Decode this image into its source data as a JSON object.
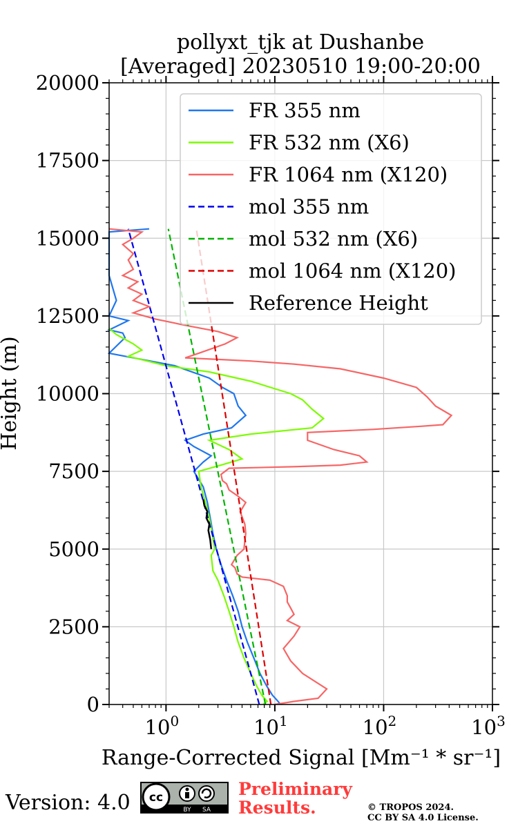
{
  "chart_data": {
    "type": "line",
    "title_line1": "pollyxt_tjk at Dushanbe",
    "title_line2": "[Averaged] 20230510 19:00-20:00",
    "xlabel": "Range-Corrected Signal",
    "xlabel_units": "[Mm⁻¹ * sr⁻¹]",
    "ylabel": "Height (m)",
    "xscale": "log",
    "xlim": [
      0.3,
      1000
    ],
    "ylim": [
      0,
      20000
    ],
    "grid": true,
    "legend_position": "top-right",
    "x_ticks": [
      {
        "value": 1,
        "base": "10",
        "exp": "0"
      },
      {
        "value": 10,
        "base": "10",
        "exp": "1"
      },
      {
        "value": 100,
        "base": "10",
        "exp": "2"
      },
      {
        "value": 1000,
        "base": "10",
        "exp": "3"
      }
    ],
    "y_ticks": [
      {
        "value": 0,
        "label": "0"
      },
      {
        "value": 2500,
        "label": "2500"
      },
      {
        "value": 5000,
        "label": "5000"
      },
      {
        "value": 7500,
        "label": "7500"
      },
      {
        "value": 10000,
        "label": "10000"
      },
      {
        "value": 12500,
        "label": "12500"
      },
      {
        "value": 15000,
        "label": "15000"
      },
      {
        "value": 17500,
        "label": "17500"
      },
      {
        "value": 20000,
        "label": "20000"
      }
    ],
    "series": [
      {
        "name": "FR 355 nm",
        "color": "#1f77ee",
        "style": "solid",
        "points": [
          [
            10.5,
            0
          ],
          [
            11,
            50
          ],
          [
            10.4,
            150
          ],
          [
            9.5,
            300
          ],
          [
            8.4,
            600
          ],
          [
            7.3,
            1000
          ],
          [
            6.4,
            1500
          ],
          [
            5.6,
            2000
          ],
          [
            5,
            2500
          ],
          [
            4.6,
            3000
          ],
          [
            4.1,
            3500
          ],
          [
            3.6,
            4000
          ],
          [
            3.2,
            4500
          ],
          [
            2.9,
            5000
          ],
          [
            2.7,
            5500
          ],
          [
            2.55,
            6000
          ],
          [
            2.4,
            6500
          ],
          [
            2.2,
            7000
          ],
          [
            1.8,
            7500
          ],
          [
            2.2,
            7800
          ],
          [
            2.6,
            8000
          ],
          [
            1.8,
            8300
          ],
          [
            1.5,
            8500
          ],
          [
            2.2,
            8700
          ],
          [
            4,
            8900
          ],
          [
            5.4,
            9300
          ],
          [
            4.6,
            9600
          ],
          [
            4.2,
            10000
          ],
          [
            3.3,
            10200
          ],
          [
            2.5,
            10500
          ],
          [
            1.2,
            10900
          ],
          [
            0.6,
            11100
          ],
          [
            0.3,
            11300
          ],
          [
            0.42,
            11800
          ],
          [
            0.4,
            11950
          ],
          [
            0.3,
            12050
          ],
          [
            0.45,
            12350
          ],
          [
            0.3,
            12500
          ],
          [
            0.35,
            13000
          ],
          [
            0.3,
            13800
          ],
          [
            0.3,
            15200
          ],
          [
            0.7,
            15300
          ]
        ]
      },
      {
        "name": "FR 532 nm (X6)",
        "color": "#7cfc00",
        "style": "solid",
        "points": [
          [
            7.8,
            0
          ],
          [
            8.5,
            100
          ],
          [
            7.6,
            300
          ],
          [
            6.8,
            600
          ],
          [
            6,
            1000
          ],
          [
            5.2,
            1500
          ],
          [
            4.6,
            2000
          ],
          [
            4.2,
            2500
          ],
          [
            3.8,
            3000
          ],
          [
            3.4,
            3500
          ],
          [
            3,
            4000
          ],
          [
            2.7,
            4300
          ],
          [
            2.6,
            4800
          ],
          [
            2.8,
            5000
          ],
          [
            2.65,
            5500
          ],
          [
            2.5,
            6000
          ],
          [
            2.3,
            6500
          ],
          [
            2.1,
            7000
          ],
          [
            2,
            7500
          ],
          [
            3.2,
            7700
          ],
          [
            5,
            7900
          ],
          [
            3.8,
            8200
          ],
          [
            2.5,
            8500
          ],
          [
            6,
            8700
          ],
          [
            22,
            8900
          ],
          [
            28,
            9200
          ],
          [
            22,
            9500
          ],
          [
            18,
            9800
          ],
          [
            14,
            10000
          ],
          [
            6,
            10400
          ],
          [
            2.5,
            10700
          ],
          [
            1,
            10900
          ],
          [
            0.45,
            11200
          ],
          [
            0.6,
            11400
          ],
          [
            0.5,
            11600
          ],
          [
            0.35,
            11900
          ],
          [
            0.3,
            12100
          ]
        ]
      },
      {
        "name": "FR 1064 nm (X120)",
        "color": "#f76565",
        "style": "solid",
        "points": [
          [
            10,
            0
          ],
          [
            15,
            100
          ],
          [
            25,
            200
          ],
          [
            30,
            500
          ],
          [
            18,
            1000
          ],
          [
            14,
            1400
          ],
          [
            12,
            1800
          ],
          [
            15,
            2200
          ],
          [
            17,
            2500
          ],
          [
            13,
            2700
          ],
          [
            15,
            2900
          ],
          [
            14,
            3100
          ],
          [
            13,
            3300
          ],
          [
            13,
            3500
          ],
          [
            12,
            3800
          ],
          [
            9,
            4000
          ],
          [
            5,
            4100
          ],
          [
            4.5,
            4200
          ],
          [
            4.3,
            4400
          ],
          [
            4,
            4500
          ],
          [
            4.5,
            4800
          ],
          [
            5.2,
            5000
          ],
          [
            5.4,
            5500
          ],
          [
            5.3,
            5800
          ],
          [
            4.8,
            6200
          ],
          [
            5.4,
            6500
          ],
          [
            4.6,
            6700
          ],
          [
            3.8,
            6900
          ],
          [
            3.6,
            7100
          ],
          [
            3.3,
            7200
          ],
          [
            3.2,
            7400
          ],
          [
            3.8,
            7600
          ],
          [
            15,
            7650
          ],
          [
            40,
            7700
          ],
          [
            70,
            7800
          ],
          [
            60,
            8000
          ],
          [
            35,
            8200
          ],
          [
            20,
            8500
          ],
          [
            20,
            8750
          ],
          [
            80,
            8850
          ],
          [
            220,
            8950
          ],
          [
            350,
            9000
          ],
          [
            420,
            9300
          ],
          [
            300,
            9600
          ],
          [
            250,
            9900
          ],
          [
            200,
            10200
          ],
          [
            100,
            10500
          ],
          [
            40,
            10800
          ],
          [
            15,
            10950
          ],
          [
            6,
            11050
          ],
          [
            3,
            11100
          ],
          [
            1.5,
            11150
          ],
          [
            2,
            11300
          ],
          [
            3.5,
            11600
          ],
          [
            4.5,
            11800
          ],
          [
            3,
            12000
          ],
          [
            1.5,
            12200
          ],
          [
            0.8,
            12400
          ],
          [
            0.5,
            12600
          ],
          [
            0.7,
            12800
          ],
          [
            0.5,
            13000
          ],
          [
            0.6,
            13200
          ],
          [
            0.45,
            13400
          ],
          [
            0.55,
            13600
          ],
          [
            0.4,
            13800
          ],
          [
            0.5,
            14000
          ],
          [
            0.45,
            14300
          ],
          [
            0.5,
            14500
          ],
          [
            0.4,
            14800
          ],
          [
            0.5,
            15000
          ],
          [
            0.6,
            15200
          ],
          [
            0.3,
            15300
          ]
        ]
      },
      {
        "name": "mol 355 nm",
        "color": "#0000ee",
        "style": "dashed",
        "points": [
          [
            7.2,
            0
          ],
          [
            0.45,
            15300
          ]
        ]
      },
      {
        "name": "mol 532 nm (X6)",
        "color": "#00b400",
        "style": "dashed",
        "points": [
          [
            8.2,
            0
          ],
          [
            1.05,
            15300
          ]
        ]
      },
      {
        "name": "mol 1064 nm (X120)",
        "color": "#dd0000",
        "style": "dashed",
        "points": [
          [
            9.2,
            0
          ],
          [
            1.9,
            15300
          ]
        ]
      },
      {
        "name": "Reference Height",
        "color": "#000000",
        "style": "solid",
        "points": [
          [
            2.6,
            5000
          ],
          [
            2.55,
            5300
          ],
          [
            2.45,
            5600
          ],
          [
            2.5,
            5800
          ],
          [
            2.35,
            6000
          ],
          [
            2.4,
            6200
          ],
          [
            2.25,
            6400
          ],
          [
            2.2,
            6600
          ]
        ]
      }
    ]
  },
  "footer": {
    "version_label": "Version: 4.0",
    "cc_text": "cc",
    "cc_by": "BY",
    "cc_sa": "SA",
    "preliminary_line1": "Preliminary",
    "preliminary_line2": "Results.",
    "copyright_line1": "© TROPOS 2024.",
    "copyright_line2": "CC BY SA 4.0 License."
  }
}
